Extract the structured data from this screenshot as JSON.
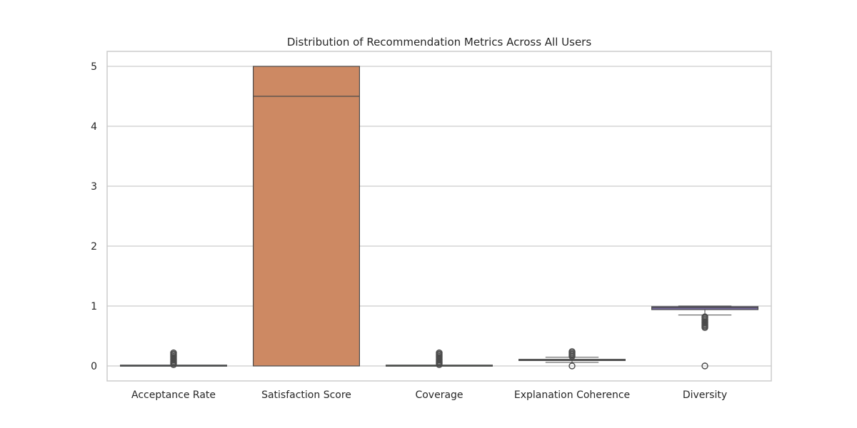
{
  "chart_data": {
    "type": "box",
    "title": "Distribution of Recommendation Metrics Across All Users",
    "xlabel": "",
    "ylabel": "",
    "ylim": [
      -0.25,
      5.25
    ],
    "yticks": [
      0,
      1,
      2,
      3,
      4,
      5
    ],
    "grid": true,
    "categories": [
      "Acceptance Rate",
      "Satisfaction Score",
      "Coverage",
      "Explanation Coherence",
      "Diversity"
    ],
    "boxes": [
      {
        "name": "Acceptance Rate",
        "color": "#4c72b0",
        "whisker_low": 0.0,
        "q1": 0.0,
        "median": 0.0,
        "q3": 0.005,
        "whisker_high": 0.01,
        "outliers": [
          0.02,
          0.04,
          0.06,
          0.08,
          0.1,
          0.12,
          0.14,
          0.16,
          0.18,
          0.2,
          0.22
        ]
      },
      {
        "name": "Satisfaction Score",
        "color": "#cd8963",
        "whisker_low": 0.0,
        "q1": 0.0,
        "median": 4.5,
        "q3": 5.0,
        "whisker_high": 5.0,
        "outliers": []
      },
      {
        "name": "Coverage",
        "color": "#55a868",
        "whisker_low": 0.0,
        "q1": 0.0,
        "median": 0.0,
        "q3": 0.005,
        "whisker_high": 0.01,
        "outliers": [
          0.02,
          0.04,
          0.06,
          0.08,
          0.1,
          0.12,
          0.14,
          0.16,
          0.18,
          0.2,
          0.22
        ]
      },
      {
        "name": "Explanation Coherence",
        "color": "#c44e52",
        "whisker_low": 0.06,
        "q1": 0.09,
        "median": 0.1,
        "q3": 0.11,
        "whisker_high": 0.145,
        "outliers": [
          0.0,
          0.16,
          0.18,
          0.2,
          0.22,
          0.24
        ]
      },
      {
        "name": "Diversity",
        "color": "#8172b3",
        "whisker_low": 0.85,
        "q1": 0.94,
        "median": 0.97,
        "q3": 0.99,
        "whisker_high": 1.0,
        "outliers": [
          0.0,
          0.64,
          0.66,
          0.68,
          0.7,
          0.72,
          0.74,
          0.76,
          0.78,
          0.8,
          0.82
        ]
      }
    ]
  }
}
